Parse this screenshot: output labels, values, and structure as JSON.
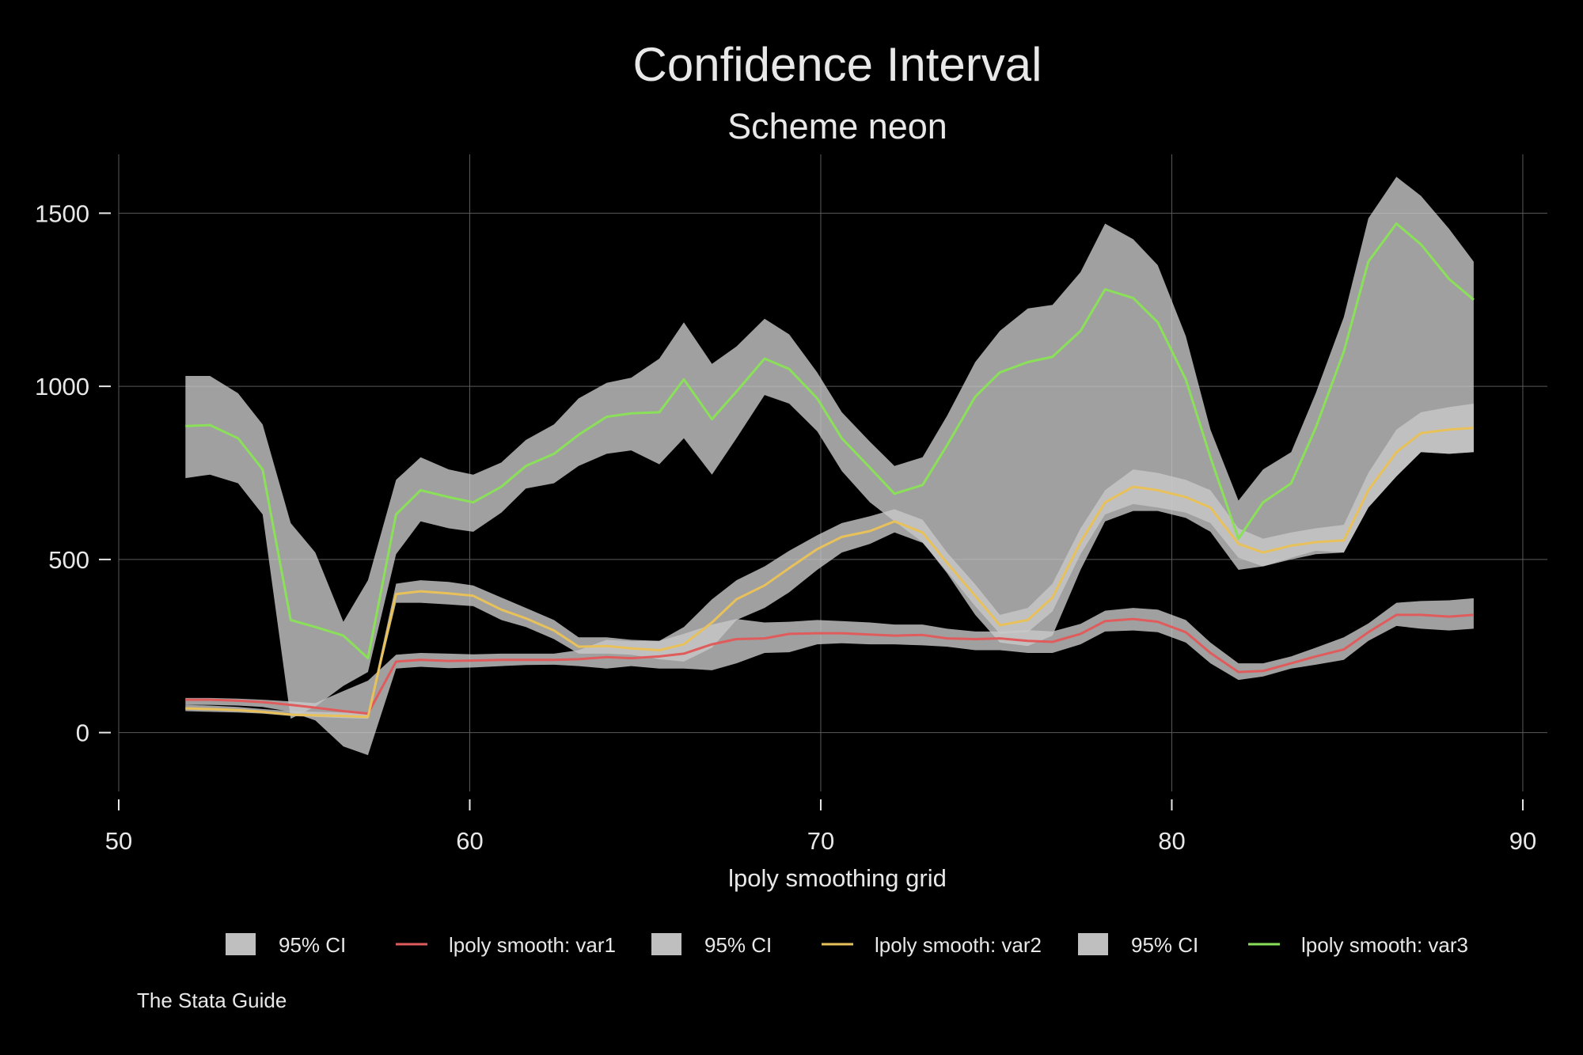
{
  "chart_data": {
    "type": "line",
    "title": "Confidence Interval",
    "subtitle": "Scheme neon",
    "xlabel": "lpoly smoothing grid",
    "ylabel": "",
    "xlim": [
      50,
      90.7
    ],
    "ylim": [
      -170,
      1670
    ],
    "x_ticks": [
      50,
      60,
      70,
      80,
      90
    ],
    "y_ticks": [
      0,
      500,
      1000,
      1500
    ],
    "grid": true,
    "legend_position": "bottom",
    "legend": [
      {
        "label": "95% CI",
        "kind": "area",
        "color": "#bfbfbf"
      },
      {
        "label": "lpoly smooth: var1",
        "kind": "line",
        "color": "#e05b5b"
      },
      {
        "label": "95% CI",
        "kind": "area",
        "color": "#bfbfbf"
      },
      {
        "label": "lpoly smooth: var2",
        "kind": "line",
        "color": "#e8c15a"
      },
      {
        "label": "95% CI",
        "kind": "area",
        "color": "#bfbfbf"
      },
      {
        "label": "lpoly smooth: var3",
        "kind": "line",
        "color": "#8be05a"
      }
    ],
    "note": "The Stata Guide",
    "x": [
      51.9,
      52.6,
      53.4,
      54.1,
      54.9,
      55.6,
      56.4,
      57.1,
      57.9,
      58.6,
      59.4,
      60.1,
      60.9,
      61.6,
      62.4,
      63.1,
      63.9,
      64.6,
      65.4,
      66.1,
      66.9,
      67.6,
      68.4,
      69.1,
      69.9,
      70.6,
      71.4,
      72.1,
      72.9,
      73.6,
      74.4,
      75.1,
      75.9,
      76.6,
      77.4,
      78.1,
      78.9,
      79.6,
      80.4,
      81.1,
      81.9,
      82.6,
      83.4,
      84.1,
      84.9,
      85.6,
      86.4,
      87.1,
      87.9,
      88.6
    ],
    "series": [
      {
        "name": "lpoly smooth: var1",
        "color": "#e05b5b",
        "values": [
          95,
          95,
          92,
          88,
          80,
          72,
          62,
          55,
          205,
          210,
          207,
          208,
          210,
          210,
          210,
          212,
          218,
          215,
          220,
          228,
          255,
          270,
          272,
          285,
          287,
          287,
          283,
          280,
          282,
          272,
          270,
          272,
          265,
          262,
          285,
          322,
          328,
          320,
          290,
          230,
          175,
          178,
          200,
          220,
          240,
          290,
          340,
          340,
          335,
          340
        ],
        "ci_lower": [
          80,
          80,
          78,
          74,
          60,
          35,
          -40,
          -65,
          185,
          190,
          186,
          188,
          192,
          195,
          196,
          192,
          185,
          192,
          185,
          185,
          180,
          200,
          230,
          232,
          255,
          258,
          255,
          255,
          252,
          248,
          238,
          238,
          230,
          230,
          255,
          292,
          295,
          290,
          260,
          200,
          152,
          162,
          185,
          196,
          210,
          265,
          308,
          300,
          295,
          300
        ],
        "ci_upper": [
          100,
          100,
          98,
          95,
          90,
          85,
          120,
          150,
          225,
          230,
          228,
          226,
          228,
          228,
          228,
          238,
          268,
          264,
          265,
          285,
          312,
          328,
          318,
          320,
          325,
          322,
          318,
          312,
          312,
          300,
          292,
          292,
          296,
          292,
          314,
          352,
          360,
          355,
          325,
          260,
          200,
          200,
          220,
          245,
          275,
          315,
          375,
          380,
          382,
          388
        ]
      },
      {
        "name": "lpoly smooth: var2",
        "color": "#e8c15a",
        "values": [
          70,
          68,
          65,
          60,
          52,
          50,
          48,
          45,
          400,
          408,
          402,
          395,
          355,
          330,
          295,
          248,
          250,
          243,
          238,
          255,
          318,
          385,
          425,
          475,
          530,
          565,
          582,
          610,
          578,
          490,
          395,
          310,
          325,
          390,
          550,
          665,
          710,
          700,
          680,
          650,
          545,
          520,
          540,
          550,
          555,
          700,
          810,
          865,
          875,
          880
        ],
        "ci_lower": [
          62,
          60,
          58,
          55,
          48,
          45,
          42,
          40,
          375,
          375,
          370,
          365,
          325,
          305,
          270,
          228,
          228,
          225,
          212,
          205,
          245,
          325,
          360,
          405,
          470,
          520,
          545,
          578,
          548,
          465,
          365,
          285,
          290,
          350,
          515,
          630,
          660,
          650,
          635,
          605,
          505,
          480,
          505,
          525,
          520,
          650,
          740,
          810,
          805,
          810
        ],
        "ci_upper": [
          80,
          78,
          74,
          68,
          62,
          60,
          58,
          55,
          430,
          440,
          435,
          425,
          390,
          360,
          325,
          275,
          275,
          268,
          265,
          305,
          385,
          440,
          480,
          525,
          570,
          605,
          625,
          645,
          615,
          520,
          428,
          340,
          360,
          430,
          590,
          700,
          760,
          750,
          730,
          700,
          590,
          560,
          578,
          590,
          600,
          750,
          875,
          925,
          940,
          950
        ]
      },
      {
        "name": "lpoly smooth: var3",
        "color": "#8be05a",
        "values": [
          885,
          888,
          850,
          760,
          325,
          305,
          280,
          215,
          630,
          700,
          680,
          665,
          710,
          770,
          805,
          860,
          912,
          922,
          925,
          1020,
          905,
          985,
          1080,
          1050,
          965,
          850,
          765,
          690,
          715,
          830,
          970,
          1040,
          1070,
          1085,
          1160,
          1280,
          1255,
          1185,
          1020,
          795,
          560,
          665,
          720,
          880,
          1100,
          1360,
          1470,
          1410,
          1310,
          1250
        ],
        "ci_lower": [
          735,
          745,
          720,
          630,
          40,
          75,
          135,
          175,
          515,
          610,
          590,
          580,
          635,
          705,
          720,
          770,
          805,
          815,
          775,
          850,
          745,
          850,
          975,
          950,
          870,
          755,
          665,
          610,
          550,
          460,
          340,
          260,
          250,
          280,
          470,
          610,
          640,
          640,
          620,
          580,
          470,
          480,
          500,
          515,
          520,
          650,
          740,
          810,
          805,
          810
        ],
        "ci_upper": [
          1030,
          1030,
          980,
          890,
          605,
          520,
          320,
          440,
          730,
          795,
          760,
          745,
          780,
          845,
          890,
          965,
          1010,
          1025,
          1080,
          1185,
          1065,
          1115,
          1195,
          1150,
          1040,
          925,
          840,
          770,
          795,
          915,
          1070,
          1160,
          1225,
          1235,
          1330,
          1470,
          1425,
          1350,
          1145,
          875,
          670,
          760,
          810,
          980,
          1200,
          1485,
          1605,
          1550,
          1455,
          1360
        ]
      }
    ]
  }
}
